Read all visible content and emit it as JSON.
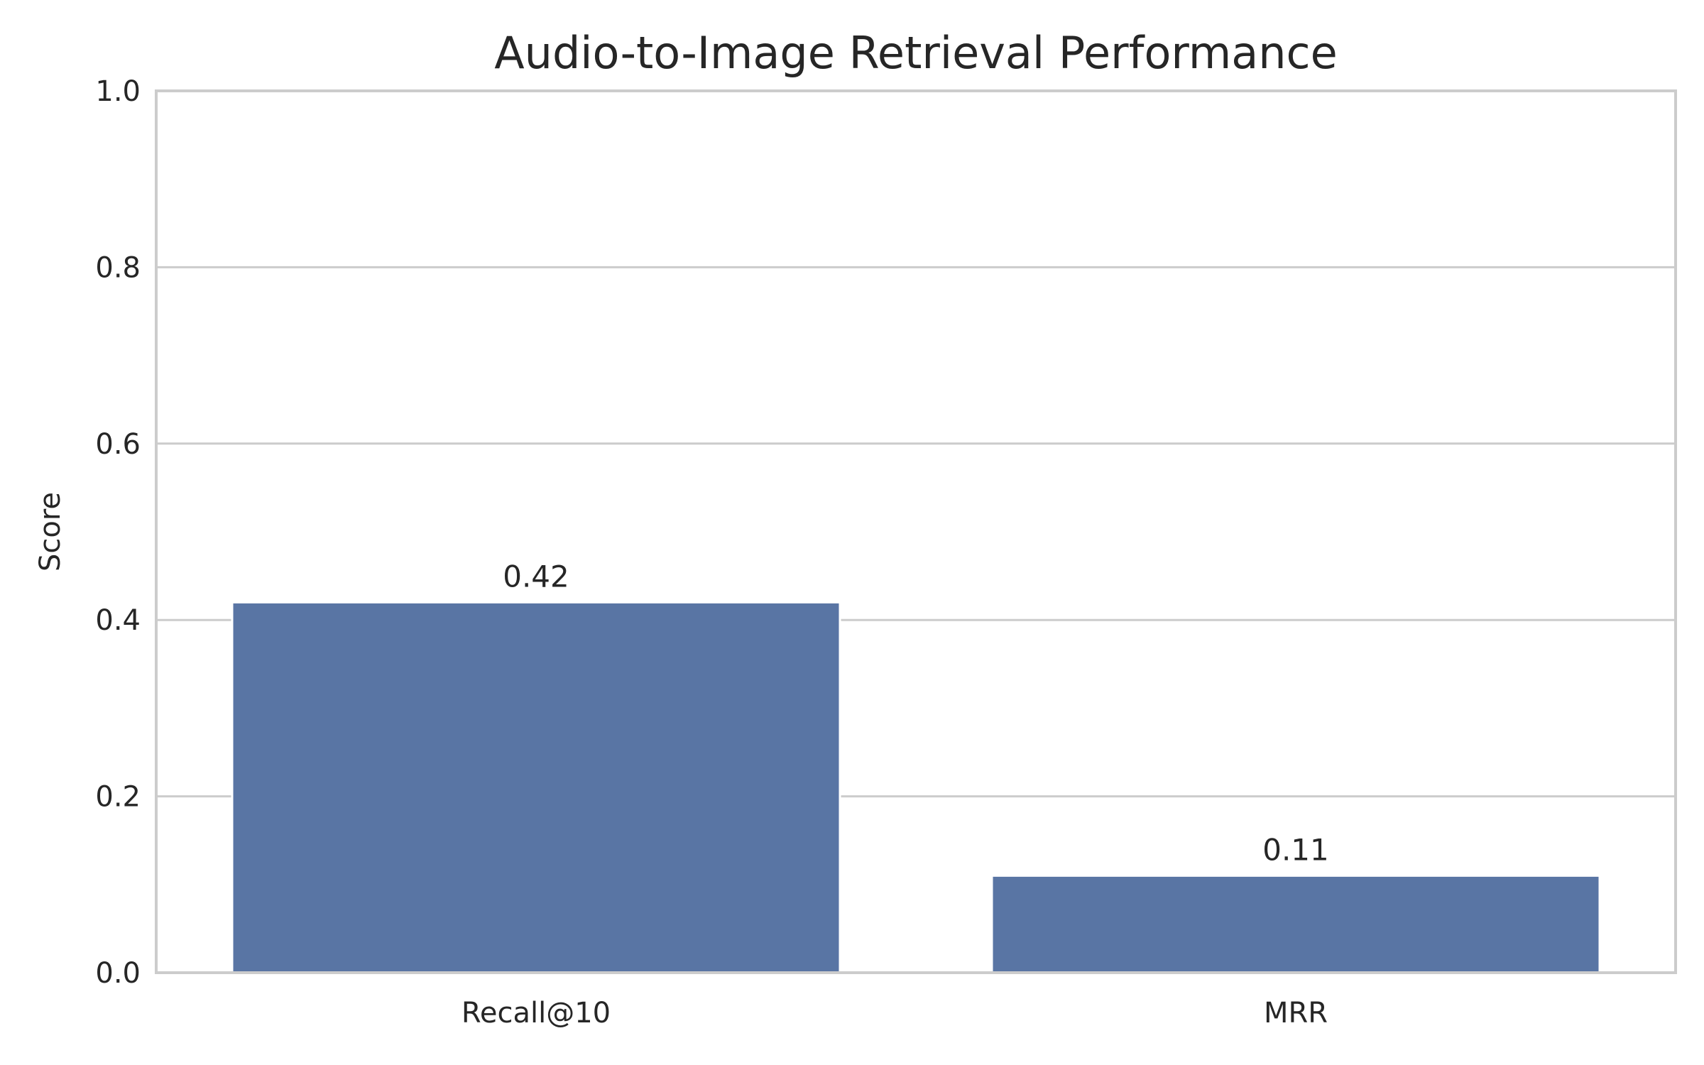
{
  "chart_data": {
    "type": "bar",
    "title": "Audio-to-Image Retrieval Performance",
    "xlabel": "",
    "ylabel": "Score",
    "categories": [
      "Recall@10",
      "MRR"
    ],
    "values": [
      0.42,
      0.11
    ],
    "data_labels": [
      "0.42",
      "0.11"
    ],
    "ylim": [
      0,
      1.0
    ],
    "yticks": [
      0.0,
      0.2,
      0.4,
      0.6,
      0.8,
      1.0
    ],
    "ytick_labels": [
      "0.0",
      "0.2",
      "0.4",
      "0.6",
      "0.8",
      "1.0"
    ],
    "grid": true,
    "bar_color": "#5975a4",
    "grid_color": "#cccccc",
    "text_color": "#262626"
  }
}
